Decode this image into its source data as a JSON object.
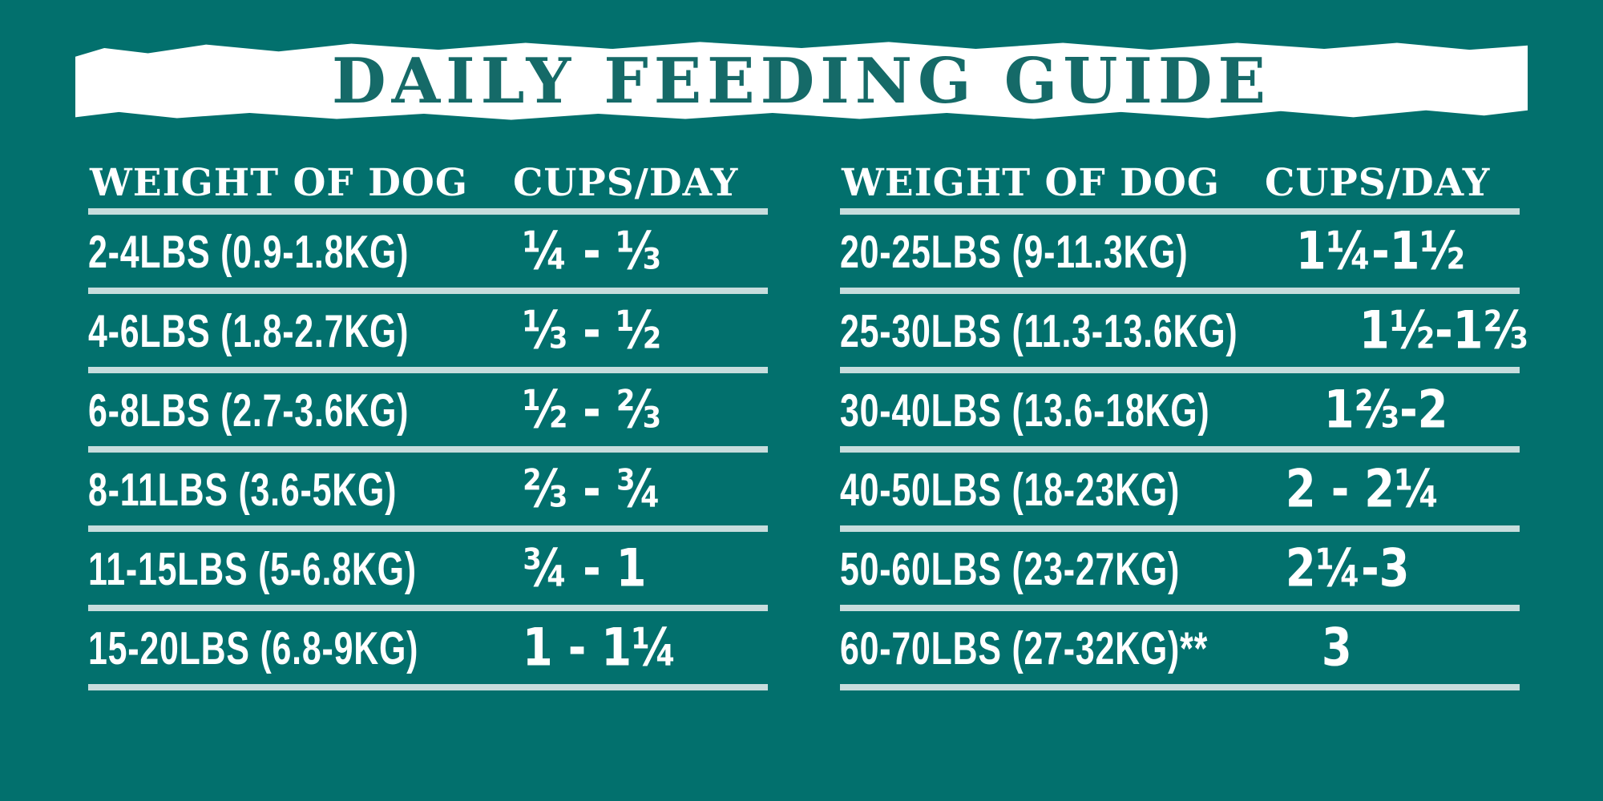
{
  "style": {
    "background": "#02706d",
    "banner_background": "#ffffff",
    "title_color": "#156a68",
    "divider_color": "#c7dddd",
    "text_color": "#ffffff"
  },
  "banner": {
    "title": "DAILY FEEDING GUIDE"
  },
  "chart_data": {
    "type": "table",
    "title": "DAILY FEEDING GUIDE",
    "tables": [
      {
        "columns": [
          "WEIGHT OF DOG",
          "CUPS/DAY"
        ],
        "rows": [
          [
            "2-4LBS (0.9-1.8KG)",
            "¼ - ⅓"
          ],
          [
            "4-6LBS (1.8-2.7KG)",
            "⅓ - ½"
          ],
          [
            "6-8LBS (2.7-3.6KG)",
            "½ - ⅔"
          ],
          [
            "8-11LBS (3.6-5KG)",
            "⅔ - ¾"
          ],
          [
            "11-15LBS (5-6.8KG)",
            "¾ - 1"
          ],
          [
            "15-20LBS (6.8-9KG)",
            "1 - 1¼"
          ]
        ]
      },
      {
        "columns": [
          "WEIGHT OF DOG",
          "CUPS/DAY"
        ],
        "rows": [
          [
            "20-25LBS (9-11.3KG)",
            "1¼-1½"
          ],
          [
            "25-30LBS (11.3-13.6KG)",
            "1½-1⅔"
          ],
          [
            "30-40LBS (13.6-18KG)",
            "1⅔-2"
          ],
          [
            "40-50LBS (18-23KG)",
            "2 - 2¼"
          ],
          [
            "50-60LBS (23-27KG)",
            "2¼-3"
          ],
          [
            "60-70LBS (27-32KG)**",
            "3"
          ]
        ]
      }
    ]
  }
}
